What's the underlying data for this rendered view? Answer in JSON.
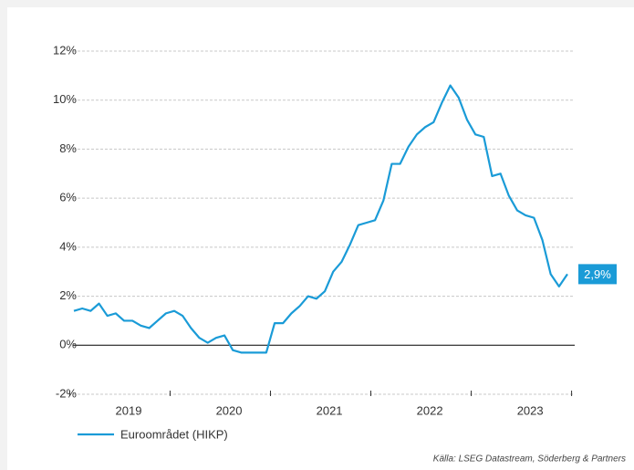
{
  "chart_data": {
    "type": "line",
    "categories": [
      null,
      null,
      null,
      null,
      null,
      null,
      "2019",
      null,
      null,
      null,
      null,
      null,
      null,
      null,
      null,
      null,
      null,
      null,
      "2020",
      null,
      null,
      null,
      null,
      null,
      null,
      null,
      null,
      null,
      null,
      null,
      "2021",
      null,
      null,
      null,
      null,
      null,
      null,
      null,
      null,
      null,
      null,
      null,
      "2022",
      null,
      null,
      null,
      null,
      null,
      null,
      null,
      null,
      null,
      null,
      null,
      "2023",
      null,
      null,
      null,
      null,
      null
    ],
    "series": [
      {
        "name": "Euroområdet (HIKP)",
        "color": "#1a9bd7",
        "values": [
          1.4,
          1.5,
          1.4,
          1.7,
          1.2,
          1.3,
          1.0,
          1.0,
          0.8,
          0.7,
          1.0,
          1.3,
          1.4,
          1.2,
          0.7,
          0.3,
          0.1,
          0.3,
          0.4,
          -0.2,
          -0.3,
          -0.3,
          -0.3,
          -0.3,
          0.9,
          0.9,
          1.3,
          1.6,
          2.0,
          1.9,
          2.2,
          3.0,
          3.4,
          4.1,
          4.9,
          5.0,
          5.1,
          5.9,
          7.4,
          7.4,
          8.1,
          8.6,
          8.9,
          9.1,
          9.9,
          10.6,
          10.1,
          9.2,
          8.6,
          8.5,
          6.9,
          7.0,
          6.1,
          5.5,
          5.3,
          5.2,
          4.3,
          2.9,
          2.4,
          2.9
        ],
        "value_labels": [
          null,
          null,
          null,
          null,
          null,
          null,
          null,
          null,
          null,
          null,
          null,
          null,
          null,
          null,
          null,
          null,
          null,
          null,
          null,
          null,
          null,
          null,
          null,
          null,
          null,
          null,
          null,
          null,
          null,
          null,
          null,
          null,
          null,
          null,
          null,
          null,
          null,
          null,
          null,
          null,
          null,
          null,
          null,
          null,
          null,
          null,
          null,
          null,
          null,
          null,
          null,
          null,
          null,
          null,
          null,
          null,
          null,
          null,
          null,
          "2,9%"
        ]
      }
    ],
    "ylim": [
      -2,
      12
    ],
    "yticks": [
      {
        "value": -2,
        "label": "-2%"
      },
      {
        "value": 0,
        "label": "0%"
      },
      {
        "value": 2,
        "label": "2%"
      },
      {
        "value": 4,
        "label": "4%"
      },
      {
        "value": 6,
        "label": "6%"
      },
      {
        "value": 8,
        "label": "8%"
      },
      {
        "value": 10,
        "label": "10%"
      },
      {
        "value": 12,
        "label": "12%"
      }
    ],
    "grid": true,
    "source": "Källa: LSEG Datastream, Söderberg & Partners"
  }
}
